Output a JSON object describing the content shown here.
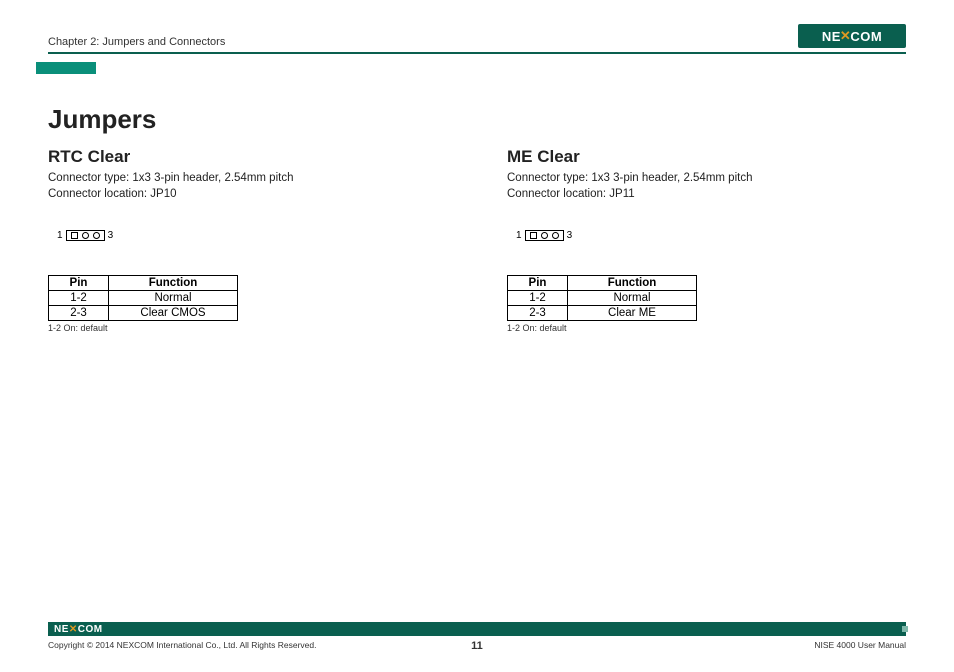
{
  "header": {
    "chapter": "Chapter 2: Jumpers and Connectors",
    "logo": "NE✕COM"
  },
  "title": "Jumpers",
  "sections": [
    {
      "heading": "RTC Clear",
      "connector_type": "Connector type: 1x3 3-pin header, 2.54mm pitch",
      "connector_location": "Connector location: JP10",
      "diagram": {
        "left_label": "1",
        "right_label": "3"
      },
      "table": {
        "headers": [
          "Pin",
          "Function"
        ],
        "rows": [
          [
            "1-2",
            "Normal"
          ],
          [
            "2-3",
            "Clear CMOS"
          ]
        ]
      },
      "note": "1-2 On: default"
    },
    {
      "heading": "ME Clear",
      "connector_type": "Connector type: 1x3 3-pin header, 2.54mm pitch",
      "connector_location": "Connector location: JP11",
      "diagram": {
        "left_label": "1",
        "right_label": "3"
      },
      "table": {
        "headers": [
          "Pin",
          "Function"
        ],
        "rows": [
          [
            "1-2",
            "Normal"
          ],
          [
            "2-3",
            "Clear ME"
          ]
        ]
      },
      "note": "1-2 On: default"
    }
  ],
  "footer": {
    "logo": "NE✕COM",
    "copyright": "Copyright © 2014 NEXCOM International Co., Ltd. All Rights Reserved.",
    "page_number": "11",
    "doc_ref": "NISE 4000 User Manual"
  },
  "colors": {
    "brand_green": "#0a5f4f",
    "teal": "#0a8f7a",
    "text": "#000000",
    "bg": "#ffffff"
  }
}
